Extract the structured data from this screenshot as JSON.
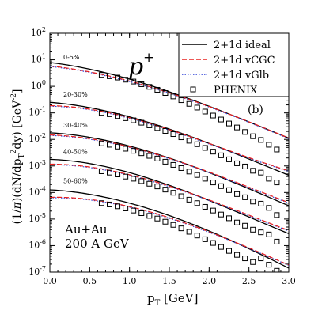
{
  "chart_data": {
    "type": "line",
    "particle": "p",
    "particle_sup": "+",
    "panel_label": "(b)",
    "xlabel_main": "p",
    "xlabel_sub": "T",
    "xlabel_unit": " [GeV]",
    "ylabel_text": "(1/π)(dN/dp_T^2 dy) [GeV^-2]",
    "system_label": "Au+Au",
    "energy_label": "200 A GeV",
    "xlim": [
      0.0,
      3.0
    ],
    "ylim_log10": [
      -7,
      2
    ],
    "y_scale": "log",
    "x_ticks": [
      "0.0",
      "0.5",
      "1.0",
      "1.5",
      "2.0",
      "2.5",
      "3.0"
    ],
    "x_tick_values": [
      0.0,
      0.5,
      1.0,
      1.5,
      2.0,
      2.5,
      3.0
    ],
    "y_tick_exponents": [
      -7,
      -6,
      -5,
      -4,
      -3,
      -2,
      -1,
      0,
      1,
      2
    ],
    "legend_position": "top-right",
    "legend": [
      {
        "label": "2+1d ideal",
        "style": "solid",
        "color": "#000000"
      },
      {
        "label": "2+1d vCGC",
        "style": "dashed",
        "color": "#e8201e"
      },
      {
        "label": "2+1d vGlb",
        "style": "dotted",
        "color": "#2b3fd6"
      },
      {
        "label": "PHENIX",
        "style": "square-marker",
        "color": "#000000"
      }
    ],
    "centralities": [
      {
        "label": "0-5%",
        "ideal_lg": [
          0.9,
          0.27,
          -0.75,
          -1.95
        ],
        "visc_lg": [
          0.75,
          0.18,
          -0.78,
          -1.97
        ]
      },
      {
        "label": "20-30%",
        "ideal_lg": [
          -0.6,
          -1.15,
          -2.15,
          -3.35
        ],
        "visc_lg": [
          -0.75,
          -1.2,
          -2.17,
          -3.2
        ]
      },
      {
        "label": "30-40%",
        "ideal_lg": [
          -1.75,
          -2.25,
          -3.25,
          -4.5
        ],
        "visc_lg": [
          -1.85,
          -2.3,
          -3.25,
          -4.4
        ]
      },
      {
        "label": "40-50%",
        "ideal_lg": [
          -2.75,
          -3.25,
          -4.3,
          -5.55
        ],
        "visc_lg": [
          -2.95,
          -3.35,
          -4.3,
          -5.45
        ]
      },
      {
        "label": "50-60%",
        "ideal_lg": [
          -3.9,
          -4.4,
          -5.45,
          -6.85
        ],
        "visc_lg": [
          -4.2,
          -4.55,
          -5.5,
          -6.75
        ]
      }
    ],
    "phenix_x": [
      0.65,
      0.75,
      0.85,
      0.95,
      1.05,
      1.15,
      1.25,
      1.35,
      1.45,
      1.55,
      1.65,
      1.75,
      1.85,
      1.95,
      2.05,
      2.15,
      2.25,
      2.35,
      2.45,
      2.55,
      2.65,
      2.75,
      2.85
    ],
    "phenix_y_log10": [
      [
        0.43,
        0.38,
        0.33,
        0.25,
        0.18,
        0.08,
        -0.02,
        -0.13,
        -0.25,
        -0.38,
        -0.52,
        -0.66,
        -0.8,
        -0.95,
        -1.1,
        -1.25,
        -1.4,
        -1.55,
        -1.72,
        -1.88,
        -2.02,
        -2.2,
        -2.38
      ],
      [
        -1.0,
        -1.05,
        -1.12,
        -1.2,
        -1.28,
        -1.37,
        -1.47,
        -1.57,
        -1.68,
        -1.8,
        -1.92,
        -2.05,
        -2.18,
        -2.32,
        -2.46,
        -2.6,
        -2.75,
        -2.9,
        -3.02,
        -3.18,
        -3.25,
        -3.48,
        -3.62
      ],
      [
        -2.15,
        -2.2,
        -2.27,
        -2.35,
        -2.43,
        -2.52,
        -2.62,
        -2.72,
        -2.84,
        -2.96,
        -3.08,
        -3.21,
        -3.34,
        -3.48,
        -3.62,
        -3.76,
        -3.91,
        -4.06,
        -4.18,
        -4.34,
        -4.42,
        -4.58,
        -4.85
      ],
      [
        -3.2,
        -3.25,
        -3.32,
        -3.4,
        -3.48,
        -3.57,
        -3.67,
        -3.77,
        -3.89,
        -4.01,
        -4.14,
        -4.27,
        -4.4,
        -4.54,
        -4.68,
        -4.83,
        -4.97,
        -5.13,
        -5.25,
        -5.4,
        -5.5,
        -5.58,
        -5.85
      ],
      [
        -4.4,
        -4.45,
        -4.52,
        -4.6,
        -4.68,
        -4.78,
        -4.88,
        -4.98,
        -5.1,
        -5.22,
        -5.35,
        -5.48,
        -5.62,
        -5.76,
        -5.9,
        -6.05,
        -6.2,
        -6.35,
        -6.48,
        -6.62,
        -6.48,
        -6.72,
        -6.95
      ]
    ]
  }
}
